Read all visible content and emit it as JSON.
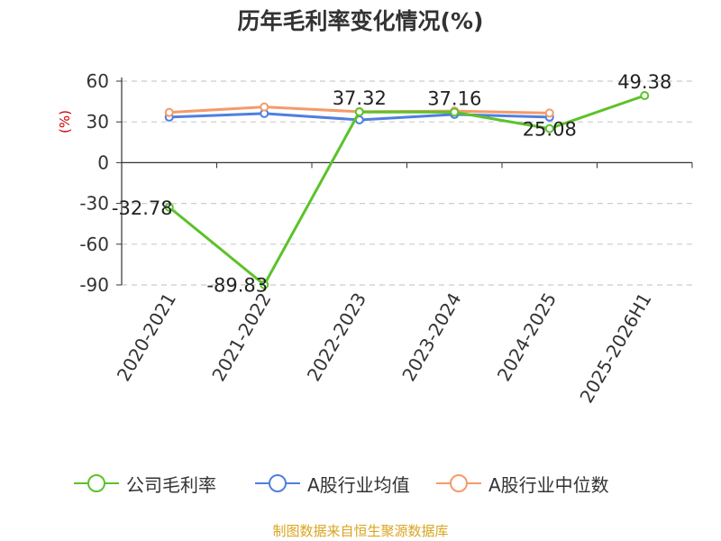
{
  "chart_data": {
    "type": "line",
    "title": "历年毛利率变化情况(%)",
    "ylabel": "(%)",
    "xlabel": "",
    "categories": [
      "2020-2021",
      "2021-2022",
      "2022-2023",
      "2023-2024",
      "2024-2025",
      "2025-2026H1"
    ],
    "ylim": [
      -90,
      60
    ],
    "yticks": [
      60,
      30,
      0,
      -30,
      -60,
      -90
    ],
    "grid": true,
    "legend_position": "bottom",
    "series": [
      {
        "name": "公司毛利率",
        "color": "#5cc22a",
        "values": [
          -32.78,
          -89.83,
          37.32,
          37.16,
          25.08,
          49.38
        ],
        "labels": [
          "-32.78",
          "-89.83",
          "37.32",
          "37.16",
          "25.08",
          "49.38"
        ]
      },
      {
        "name": "A股行业均值",
        "color": "#4f7fe0",
        "values": [
          33.5,
          36.2,
          31.5,
          35.5,
          33.5,
          null
        ]
      },
      {
        "name": "A股行业中位数",
        "color": "#f59a6a",
        "values": [
          37.0,
          41.0,
          37.5,
          38.0,
          36.5,
          null
        ]
      }
    ]
  },
  "source": "制图数据来自恒生聚源数据库"
}
